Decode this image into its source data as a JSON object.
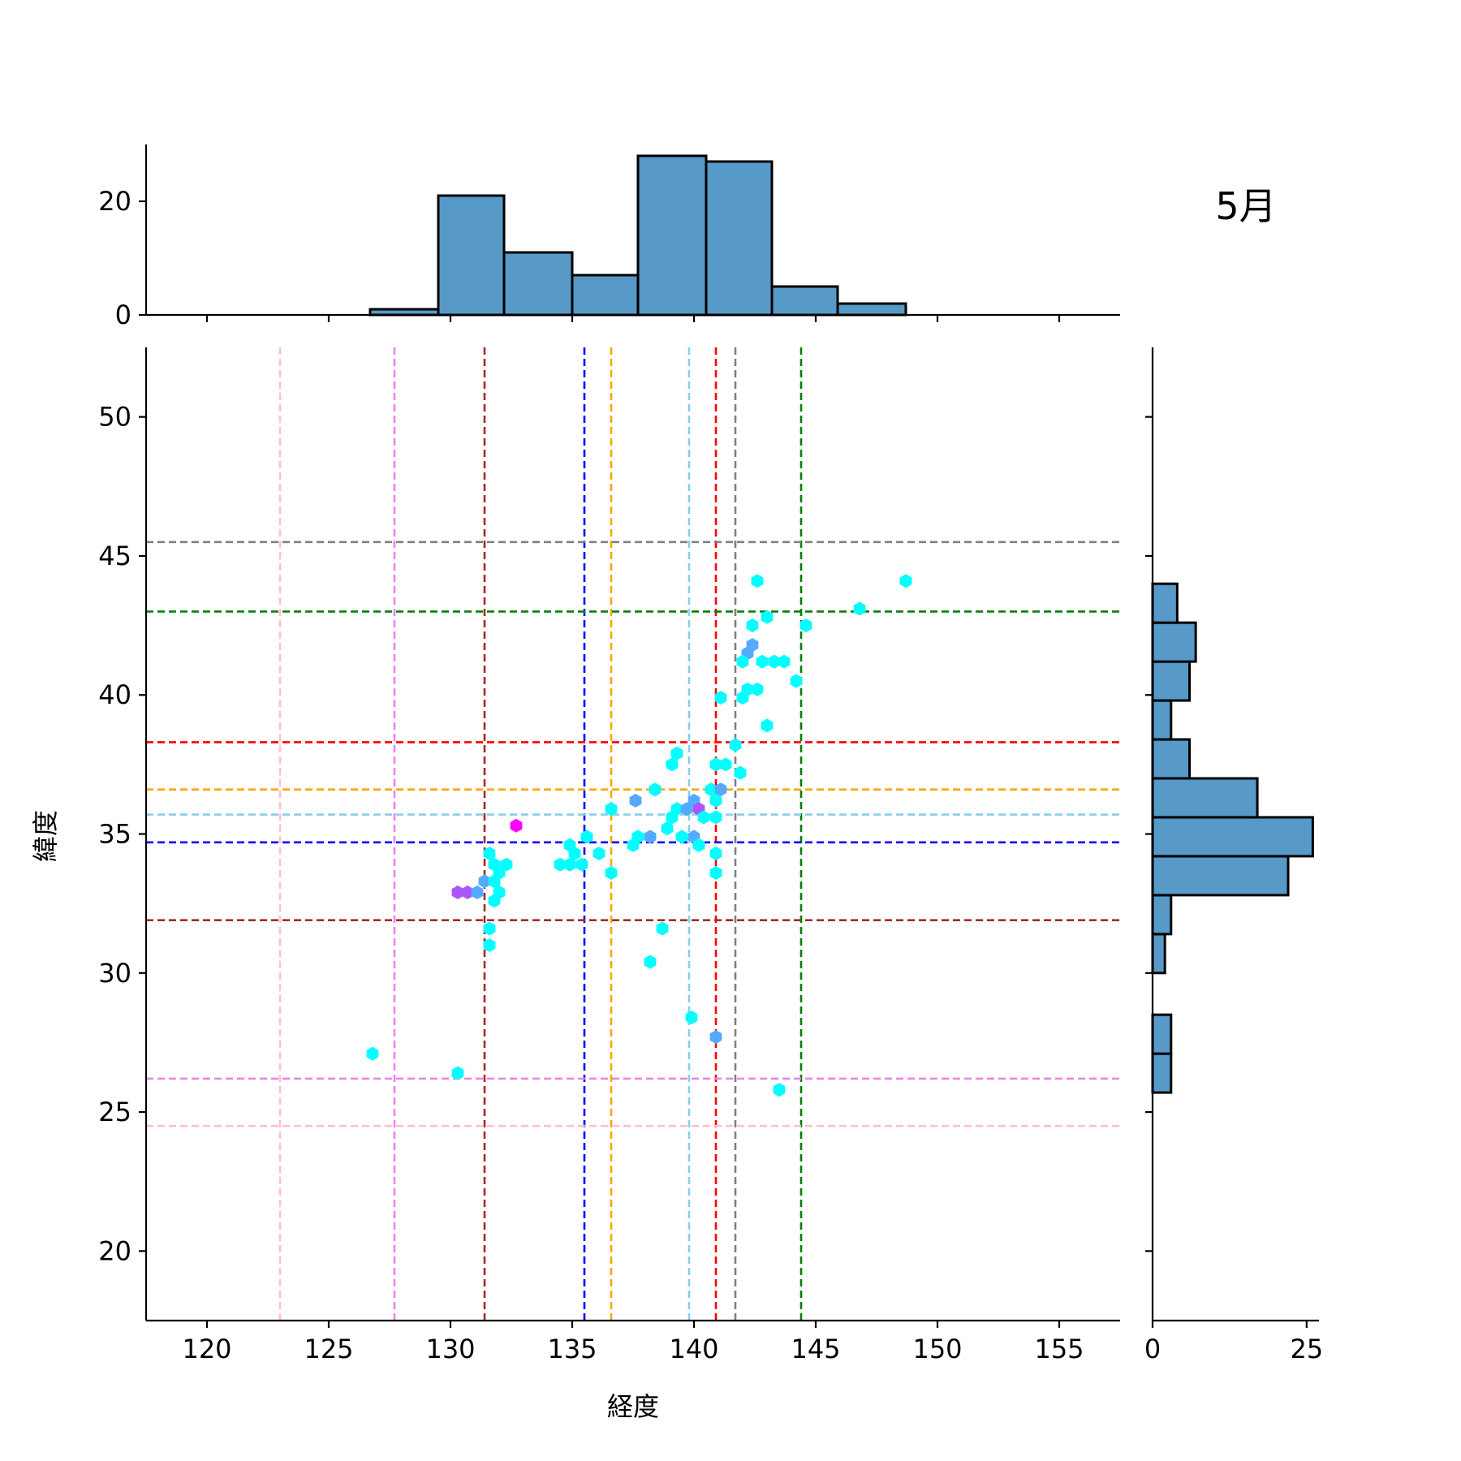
{
  "chart_data": {
    "type": "jointplot-hexbin",
    "title": "5月",
    "xlabel": "経度",
    "ylabel": "緯度",
    "xlim": [
      117.5,
      157.5
    ],
    "ylim": [
      17.5,
      52.5
    ],
    "xticks": [
      120,
      125,
      130,
      135,
      140,
      145,
      150,
      155
    ],
    "yticks": [
      20,
      25,
      30,
      35,
      40,
      45,
      50
    ],
    "top_hist": {
      "yticks": [
        0,
        20
      ],
      "ymax": 30,
      "bins": [
        {
          "x0": 126.7,
          "x1": 129.5,
          "count": 1
        },
        {
          "x0": 129.5,
          "x1": 132.2,
          "count": 21
        },
        {
          "x0": 132.2,
          "x1": 135.0,
          "count": 11
        },
        {
          "x0": 135.0,
          "x1": 137.7,
          "count": 7
        },
        {
          "x0": 137.7,
          "x1": 140.5,
          "count": 28
        },
        {
          "x0": 140.5,
          "x1": 143.2,
          "count": 27
        },
        {
          "x0": 143.2,
          "x1": 145.9,
          "count": 5
        },
        {
          "x0": 145.9,
          "x1": 148.7,
          "count": 2
        }
      ]
    },
    "right_hist": {
      "xticks": [
        0,
        25
      ],
      "xmax": 27,
      "bins": [
        {
          "y0": 25.7,
          "y1": 27.1,
          "count": 3
        },
        {
          "y0": 27.1,
          "y1": 28.5,
          "count": 3
        },
        {
          "y0": 30.0,
          "y1": 31.4,
          "count": 2
        },
        {
          "y0": 31.4,
          "y1": 32.8,
          "count": 3
        },
        {
          "y0": 32.8,
          "y1": 34.2,
          "count": 22
        },
        {
          "y0": 34.2,
          "y1": 35.6,
          "count": 26
        },
        {
          "y0": 35.6,
          "y1": 37.0,
          "count": 17
        },
        {
          "y0": 37.0,
          "y1": 38.4,
          "count": 6
        },
        {
          "y0": 38.4,
          "y1": 39.8,
          "count": 3
        },
        {
          "y0": 39.8,
          "y1": 41.2,
          "count": 6
        },
        {
          "y0": 41.2,
          "y1": 42.6,
          "count": 7
        },
        {
          "y0": 42.6,
          "y1": 44.0,
          "count": 4
        }
      ]
    },
    "vlines": [
      {
        "x": 123.0,
        "color": "#ffc0cb"
      },
      {
        "x": 127.7,
        "color": "#ee82ee"
      },
      {
        "x": 131.4,
        "color": "#a52a2a"
      },
      {
        "x": 135.5,
        "color": "#0000ff"
      },
      {
        "x": 136.6,
        "color": "#ffa500"
      },
      {
        "x": 139.8,
        "color": "#87ceeb"
      },
      {
        "x": 140.9,
        "color": "#ff0000"
      },
      {
        "x": 141.7,
        "color": "#808080"
      },
      {
        "x": 144.4,
        "color": "#008000"
      }
    ],
    "hlines": [
      {
        "y": 45.5,
        "color": "#808080"
      },
      {
        "y": 43.0,
        "color": "#008000"
      },
      {
        "y": 38.3,
        "color": "#ff0000"
      },
      {
        "y": 36.6,
        "color": "#ffa500"
      },
      {
        "y": 35.7,
        "color": "#87ceeb"
      },
      {
        "y": 34.7,
        "color": "#0000ff"
      },
      {
        "y": 31.9,
        "color": "#a52a2a"
      },
      {
        "y": 26.2,
        "color": "#ee82ee"
      },
      {
        "y": 24.5,
        "color": "#ffc0cb"
      }
    ],
    "points": [
      {
        "x": 142.6,
        "y": 44.1,
        "color": "#00ffff"
      },
      {
        "x": 148.7,
        "y": 44.1,
        "color": "#00ffff"
      },
      {
        "x": 146.8,
        "y": 43.1,
        "color": "#00ffff"
      },
      {
        "x": 143.0,
        "y": 42.8,
        "color": "#00ffff"
      },
      {
        "x": 142.4,
        "y": 42.5,
        "color": "#00ffff"
      },
      {
        "x": 144.6,
        "y": 42.5,
        "color": "#00ffff"
      },
      {
        "x": 142.4,
        "y": 41.8,
        "color": "#55aaff"
      },
      {
        "x": 142.2,
        "y": 41.5,
        "color": "#55aaff"
      },
      {
        "x": 142.0,
        "y": 41.2,
        "color": "#00ffff"
      },
      {
        "x": 142.8,
        "y": 41.2,
        "color": "#00ffff"
      },
      {
        "x": 143.3,
        "y": 41.2,
        "color": "#00ffff"
      },
      {
        "x": 143.7,
        "y": 41.2,
        "color": "#00ffff"
      },
      {
        "x": 144.2,
        "y": 40.5,
        "color": "#00ffff"
      },
      {
        "x": 142.2,
        "y": 40.2,
        "color": "#00ffff"
      },
      {
        "x": 142.6,
        "y": 40.2,
        "color": "#00ffff"
      },
      {
        "x": 141.1,
        "y": 39.9,
        "color": "#00ffff"
      },
      {
        "x": 142.0,
        "y": 39.9,
        "color": "#00ffff"
      },
      {
        "x": 143.0,
        "y": 38.9,
        "color": "#00ffff"
      },
      {
        "x": 141.7,
        "y": 38.2,
        "color": "#00ffff"
      },
      {
        "x": 139.3,
        "y": 37.9,
        "color": "#00ffff"
      },
      {
        "x": 139.1,
        "y": 37.5,
        "color": "#00ffff"
      },
      {
        "x": 140.9,
        "y": 37.5,
        "color": "#00ffff"
      },
      {
        "x": 141.3,
        "y": 37.5,
        "color": "#00ffff"
      },
      {
        "x": 141.9,
        "y": 37.2,
        "color": "#00ffff"
      },
      {
        "x": 138.4,
        "y": 36.6,
        "color": "#00ffff"
      },
      {
        "x": 140.7,
        "y": 36.6,
        "color": "#00ffff"
      },
      {
        "x": 141.1,
        "y": 36.6,
        "color": "#55aaff"
      },
      {
        "x": 137.6,
        "y": 36.2,
        "color": "#55aaff"
      },
      {
        "x": 140.0,
        "y": 36.2,
        "color": "#55aaff"
      },
      {
        "x": 140.9,
        "y": 36.2,
        "color": "#00ffff"
      },
      {
        "x": 136.6,
        "y": 35.9,
        "color": "#00ffff"
      },
      {
        "x": 139.3,
        "y": 35.9,
        "color": "#00ffff"
      },
      {
        "x": 139.7,
        "y": 35.9,
        "color": "#55aaff"
      },
      {
        "x": 140.2,
        "y": 35.9,
        "color": "#aa55ff"
      },
      {
        "x": 139.1,
        "y": 35.6,
        "color": "#00ffff"
      },
      {
        "x": 140.4,
        "y": 35.6,
        "color": "#00ffff"
      },
      {
        "x": 140.9,
        "y": 35.6,
        "color": "#00ffff"
      },
      {
        "x": 138.9,
        "y": 35.2,
        "color": "#00ffff"
      },
      {
        "x": 132.7,
        "y": 35.3,
        "color": "#ff00ff"
      },
      {
        "x": 135.6,
        "y": 34.9,
        "color": "#00ffff"
      },
      {
        "x": 137.7,
        "y": 34.9,
        "color": "#00ffff"
      },
      {
        "x": 138.2,
        "y": 34.9,
        "color": "#55aaff"
      },
      {
        "x": 139.5,
        "y": 34.9,
        "color": "#00ffff"
      },
      {
        "x": 140.0,
        "y": 34.9,
        "color": "#55aaff"
      },
      {
        "x": 134.9,
        "y": 34.6,
        "color": "#00ffff"
      },
      {
        "x": 137.5,
        "y": 34.6,
        "color": "#00ffff"
      },
      {
        "x": 140.2,
        "y": 34.6,
        "color": "#00ffff"
      },
      {
        "x": 131.6,
        "y": 34.3,
        "color": "#00ffff"
      },
      {
        "x": 135.1,
        "y": 34.3,
        "color": "#00ffff"
      },
      {
        "x": 136.1,
        "y": 34.3,
        "color": "#00ffff"
      },
      {
        "x": 140.9,
        "y": 34.3,
        "color": "#00ffff"
      },
      {
        "x": 131.8,
        "y": 33.9,
        "color": "#00ffff"
      },
      {
        "x": 132.3,
        "y": 33.9,
        "color": "#00ffff"
      },
      {
        "x": 134.5,
        "y": 33.9,
        "color": "#00ffff"
      },
      {
        "x": 134.9,
        "y": 33.9,
        "color": "#00ffff"
      },
      {
        "x": 135.4,
        "y": 33.9,
        "color": "#00ffff"
      },
      {
        "x": 132.0,
        "y": 33.6,
        "color": "#00ffff"
      },
      {
        "x": 136.6,
        "y": 33.6,
        "color": "#00ffff"
      },
      {
        "x": 140.9,
        "y": 33.6,
        "color": "#00ffff"
      },
      {
        "x": 131.4,
        "y": 33.3,
        "color": "#55aaff"
      },
      {
        "x": 131.8,
        "y": 33.3,
        "color": "#00ffff"
      },
      {
        "x": 130.3,
        "y": 32.9,
        "color": "#aa55ff"
      },
      {
        "x": 130.7,
        "y": 32.9,
        "color": "#aa55ff"
      },
      {
        "x": 131.1,
        "y": 32.9,
        "color": "#55aaff"
      },
      {
        "x": 132.0,
        "y": 32.9,
        "color": "#00ffff"
      },
      {
        "x": 131.8,
        "y": 32.6,
        "color": "#00ffff"
      },
      {
        "x": 131.6,
        "y": 31.6,
        "color": "#00ffff"
      },
      {
        "x": 138.7,
        "y": 31.6,
        "color": "#00ffff"
      },
      {
        "x": 131.6,
        "y": 31.0,
        "color": "#00ffff"
      },
      {
        "x": 138.2,
        "y": 30.4,
        "color": "#00ffff"
      },
      {
        "x": 139.9,
        "y": 28.4,
        "color": "#00ffff"
      },
      {
        "x": 140.9,
        "y": 27.7,
        "color": "#55aaff"
      },
      {
        "x": 126.8,
        "y": 27.1,
        "color": "#00ffff"
      },
      {
        "x": 130.3,
        "y": 26.4,
        "color": "#00ffff"
      },
      {
        "x": 143.5,
        "y": 25.8,
        "color": "#00ffff"
      }
    ]
  }
}
